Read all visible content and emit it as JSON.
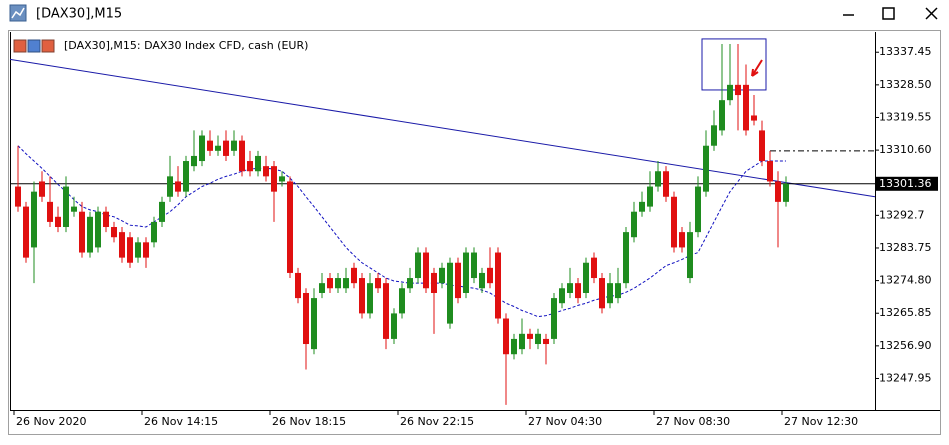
{
  "window": {
    "title": "[DAX30],M15"
  },
  "chart_data": {
    "type": "candlestick",
    "title": "[DAX30],M15:  DAX30 Index CFD, cash (EUR)",
    "categories": [
      "26 Nov 2020",
      null,
      null,
      null,
      null,
      null,
      null,
      null,
      null,
      null,
      null,
      null,
      null,
      null,
      null,
      null,
      "26 Nov 14:15",
      null,
      null,
      null,
      null,
      null,
      null,
      null,
      null,
      null,
      null,
      null,
      null,
      null,
      null,
      null,
      "26 Nov 18:15",
      null,
      null,
      null,
      null,
      null,
      null,
      null,
      null,
      null,
      null,
      null,
      null,
      null,
      null,
      null,
      "26 Nov 22:15",
      null,
      null,
      null,
      null,
      null,
      null,
      null,
      null,
      null,
      null,
      null,
      null,
      null,
      null,
      null,
      "27 Nov 04:30",
      null,
      null,
      null,
      null,
      null,
      null,
      null,
      null,
      null,
      null,
      null,
      null,
      null,
      null,
      null,
      "27 Nov 08:30",
      null,
      null,
      null,
      null,
      null,
      null,
      null,
      null,
      null,
      null,
      null,
      null,
      null,
      null,
      null,
      "27 Nov 12:30"
    ],
    "open": [
      13300.6,
      13295.1,
      13283.9,
      13302.0,
      13296.4,
      13292.3,
      13289.5,
      13293.7,
      13293.7,
      13282.5,
      13283.9,
      13293.7,
      13289.5,
      13288.1,
      13286.7,
      13281.1,
      13285.3,
      13285.3,
      13290.9,
      13297.8,
      13302.0,
      13299.2,
      13306.2,
      13307.6,
      13313.2,
      13310.4,
      13313.2,
      13310.4,
      13313.2,
      13307.6,
      13304.8,
      13306.2,
      13306.2,
      13302.0,
      13302.0,
      13276.9,
      13271.4,
      13256.0,
      13271.4,
      13275.5,
      13272.7,
      13272.7,
      13278.3,
      13275.5,
      13265.8,
      13275.5,
      13274.1,
      13258.8,
      13265.8,
      13272.7,
      13275.5,
      13282.5,
      13276.9,
      13274.1,
      13263.0,
      13279.7,
      13271.4,
      13275.5,
      13272.7,
      13278.3,
      13282.5,
      13264.4,
      13254.6,
      13256.0,
      13260.2,
      13257.4,
      13258.8,
      13258.8,
      13268.6,
      13271.4,
      13274.1,
      13271.4,
      13281.1,
      13275.5,
      13268.6,
      13270.0,
      13274.1,
      13286.7,
      13293.7,
      13295.1,
      13300.6,
      13304.8,
      13297.8,
      13288.1,
      13275.5,
      13288.1,
      13299.2,
      13311.8,
      13316.0,
      13324.3,
      13328.5,
      13328.5,
      13320.1,
      13316.0,
      13307.6,
      13302.0,
      13296.4
    ],
    "high": [
      13311.8,
      13296.4,
      13302.0,
      13304.8,
      13303.4,
      13295.1,
      13303.4,
      13297.8,
      13296.4,
      13293.7,
      13295.1,
      13295.1,
      13290.9,
      13289.5,
      13288.1,
      13286.7,
      13286.7,
      13292.3,
      13297.8,
      13309.0,
      13306.2,
      13309.0,
      13316.0,
      13316.0,
      13316.0,
      13314.6,
      13316.0,
      13316.0,
      13314.6,
      13310.4,
      13310.4,
      13309.0,
      13307.6,
      13304.8,
      13303.4,
      13278.3,
      13272.7,
      13272.7,
      13276.9,
      13276.9,
      13276.9,
      13278.3,
      13279.7,
      13276.9,
      13276.9,
      13276.9,
      13275.5,
      13267.2,
      13274.1,
      13278.3,
      13283.9,
      13283.9,
      13278.3,
      13279.7,
      13281.1,
      13281.1,
      13283.9,
      13283.9,
      13278.3,
      13283.9,
      13283.9,
      13265.8,
      13260.2,
      13264.4,
      13261.6,
      13261.6,
      13260.2,
      13271.4,
      13274.1,
      13278.3,
      13275.5,
      13281.1,
      13282.5,
      13276.9,
      13276.9,
      13278.3,
      13289.5,
      13296.4,
      13299.2,
      13304.8,
      13307.6,
      13306.2,
      13299.2,
      13289.5,
      13290.9,
      13303.4,
      13316.0,
      13321.5,
      13339.7,
      13339.7,
      13339.7,
      13334.1,
      13325.7,
      13318.7,
      13310.4,
      13304.8,
      13303.4
    ],
    "low": [
      13293.7,
      13279.7,
      13274.1,
      13296.4,
      13289.5,
      13288.1,
      13288.1,
      13292.3,
      13281.1,
      13281.1,
      13282.5,
      13288.1,
      13285.3,
      13279.7,
      13278.3,
      13279.7,
      13278.3,
      13283.9,
      13289.5,
      13296.4,
      13297.8,
      13297.8,
      13304.8,
      13306.2,
      13309.0,
      13309.0,
      13307.6,
      13309.0,
      13303.4,
      13303.4,
      13303.4,
      13302.0,
      13290.9,
      13300.6,
      13275.5,
      13268.6,
      13250.4,
      13254.6,
      13270.0,
      13271.4,
      13271.4,
      13271.4,
      13272.7,
      13264.4,
      13264.4,
      13271.4,
      13256.0,
      13257.4,
      13264.4,
      13271.4,
      13274.1,
      13271.4,
      13260.2,
      13272.7,
      13261.6,
      13268.6,
      13270.0,
      13274.1,
      13271.4,
      13272.7,
      13263.0,
      13240.7,
      13253.2,
      13254.6,
      13256.0,
      13256.0,
      13251.8,
      13257.4,
      13267.2,
      13270.0,
      13268.6,
      13270.0,
      13274.1,
      13265.8,
      13267.2,
      13268.6,
      13272.7,
      13285.3,
      13292.3,
      13293.7,
      13299.2,
      13296.4,
      13282.5,
      13282.5,
      13274.1,
      13286.7,
      13297.8,
      13310.4,
      13314.6,
      13322.9,
      13316.0,
      13314.6,
      13317.4,
      13306.2,
      13300.6,
      13283.9,
      13295.1
    ],
    "close": [
      13295.1,
      13281.1,
      13299.2,
      13297.8,
      13290.9,
      13289.5,
      13300.6,
      13295.1,
      13282.5,
      13292.3,
      13293.7,
      13289.5,
      13286.7,
      13281.1,
      13279.7,
      13285.3,
      13281.1,
      13290.9,
      13296.4,
      13303.4,
      13299.2,
      13307.6,
      13309.0,
      13314.6,
      13310.4,
      13311.8,
      13309.0,
      13313.2,
      13304.8,
      13304.8,
      13309.0,
      13303.4,
      13299.2,
      13303.4,
      13276.9,
      13270.0,
      13257.4,
      13270.0,
      13274.1,
      13272.7,
      13275.5,
      13275.5,
      13274.1,
      13265.8,
      13274.1,
      13272.7,
      13258.8,
      13265.8,
      13272.7,
      13275.5,
      13282.5,
      13272.7,
      13271.4,
      13278.3,
      13279.7,
      13270.0,
      13282.5,
      13282.5,
      13276.9,
      13274.1,
      13264.4,
      13254.6,
      13258.8,
      13260.2,
      13258.8,
      13260.2,
      13257.4,
      13270.0,
      13272.7,
      13274.1,
      13270.0,
      13279.7,
      13275.5,
      13267.2,
      13274.1,
      13274.1,
      13288.1,
      13293.7,
      13296.4,
      13300.6,
      13304.8,
      13297.8,
      13283.9,
      13283.9,
      13288.1,
      13300.6,
      13311.8,
      13317.4,
      13324.3,
      13328.5,
      13325.7,
      13316.0,
      13318.7,
      13307.6,
      13302.0,
      13296.4,
      13301.36
    ],
    "up_color": "#1f8c1f",
    "down_color": "#e01010",
    "ma": {
      "color": "#1010c0",
      "values": [
        13311.8,
        13309.6,
        13307.6,
        13305.6,
        13303.4,
        13301.2,
        13299.2,
        13297.0,
        13295.1,
        13294.2,
        13293.7,
        13292.8,
        13292.3,
        13291.2,
        13290.0,
        13289.8,
        13289.5,
        13290.9,
        13292.3,
        13293.7,
        13295.6,
        13297.8,
        13299.2,
        13300.6,
        13301.5,
        13302.6,
        13303.4,
        13304.0,
        13304.8,
        13305.4,
        13305.6,
        13305.6,
        13305.4,
        13304.8,
        13302.9,
        13300.6,
        13297.8,
        13295.1,
        13292.3,
        13289.5,
        13286.7,
        13283.9,
        13281.7,
        13279.7,
        13278.3,
        13276.9,
        13275.5,
        13274.7,
        13274.4,
        13274.1,
        13274.1,
        13274.1,
        13274.1,
        13274.1,
        13273.6,
        13273.3,
        13273.0,
        13272.7,
        13272.2,
        13271.4,
        13270.0,
        13268.6,
        13267.7,
        13266.6,
        13265.8,
        13264.9,
        13265.2,
        13265.8,
        13266.6,
        13267.2,
        13268.0,
        13268.6,
        13269.4,
        13270.0,
        13270.5,
        13270.8,
        13271.6,
        13272.7,
        13274.1,
        13275.5,
        13277.2,
        13278.9,
        13279.7,
        13280.6,
        13281.7,
        13282.5,
        13286.7,
        13290.9,
        13295.1,
        13299.2,
        13302.0,
        13304.8,
        13306.2,
        13307.6,
        13307.6,
        13307.6,
        13307.6
      ]
    },
    "trendline": {
      "color": "#1a1aa8",
      "values": [
        13335.5,
        13297.8
      ]
    },
    "level": {
      "color": "#000000",
      "value": 13310.4
    },
    "rectangle": {
      "color": "#1a1aa8",
      "low": 13327.1,
      "high": 13341.1
    },
    "ylim": [
      13239.3,
      13343.0
    ],
    "yticks": [
      13337.45,
      {
        "value": 13328.5,
        "label": "13328.50"
      },
      13319.55,
      {
        "value": 13310.6,
        "label": "13310.60"
      },
      13292.7,
      13283.75,
      {
        "value": 13274.8,
        "label": "13274.80"
      },
      13265.85,
      {
        "value": 13256.9,
        "label": "13256.90"
      },
      13247.95
    ]
  }
}
